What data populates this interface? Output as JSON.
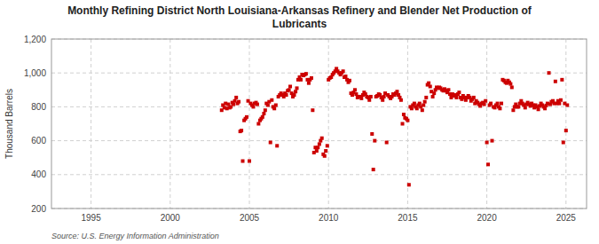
{
  "chart_data": {
    "type": "scatter",
    "title": "Monthly Refining District North Louisiana-Arkansas Refinery and Blender Net Production of\nLubricants",
    "ylabel": "Thousand Barrels",
    "source": "Source: U.S. Energy Information Administration",
    "color": "#cc0000",
    "marker": "square",
    "grid": true,
    "xlim": [
      1992.5,
      2026.3
    ],
    "xticks": [
      1995,
      2000,
      2005,
      2010,
      2015,
      2020,
      2025
    ],
    "ylim": [
      200,
      1200
    ],
    "yticks": [
      200,
      400,
      600,
      800,
      {
        "value": 1000,
        "label": "1,000"
      },
      {
        "value": 1200,
        "label": "1,200"
      }
    ],
    "x": [
      2003.25,
      2003.33,
      2003.42,
      2003.5,
      2003.58,
      2003.67,
      2003.75,
      2003.83,
      2003.92,
      2004.0,
      2004.08,
      2004.17,
      2004.25,
      2004.33,
      2004.42,
      2004.5,
      2004.58,
      2004.67,
      2004.75,
      2004.83,
      2004.92,
      2005.0,
      2005.08,
      2005.17,
      2005.25,
      2005.33,
      2005.42,
      2005.5,
      2005.58,
      2005.67,
      2005.75,
      2005.83,
      2005.92,
      2006.0,
      2006.08,
      2006.17,
      2006.25,
      2006.33,
      2006.42,
      2006.5,
      2006.58,
      2006.67,
      2006.75,
      2006.83,
      2006.92,
      2007.0,
      2007.08,
      2007.17,
      2007.25,
      2007.33,
      2007.42,
      2007.5,
      2007.58,
      2007.67,
      2007.75,
      2007.83,
      2007.92,
      2008.0,
      2008.08,
      2008.17,
      2008.25,
      2008.33,
      2008.42,
      2008.5,
      2008.58,
      2008.67,
      2008.75,
      2008.83,
      2008.92,
      2009.0,
      2009.08,
      2009.17,
      2009.25,
      2009.33,
      2009.42,
      2009.5,
      2009.58,
      2009.67,
      2009.75,
      2009.83,
      2009.92,
      2010.0,
      2010.08,
      2010.17,
      2010.25,
      2010.33,
      2010.42,
      2010.5,
      2010.58,
      2010.67,
      2010.75,
      2010.83,
      2010.92,
      2011.0,
      2011.08,
      2011.17,
      2011.25,
      2011.33,
      2011.42,
      2011.5,
      2011.58,
      2011.67,
      2011.75,
      2011.83,
      2011.92,
      2012.0,
      2012.08,
      2012.17,
      2012.25,
      2012.33,
      2012.42,
      2012.5,
      2012.58,
      2012.67,
      2012.75,
      2012.83,
      2012.92,
      2013.0,
      2013.08,
      2013.17,
      2013.25,
      2013.33,
      2013.42,
      2013.5,
      2013.58,
      2013.67,
      2013.75,
      2013.83,
      2013.92,
      2014.0,
      2014.08,
      2014.17,
      2014.25,
      2014.33,
      2014.42,
      2014.5,
      2014.58,
      2014.67,
      2014.75,
      2014.83,
      2014.92,
      2015.0,
      2015.08,
      2015.17,
      2015.25,
      2015.33,
      2015.42,
      2015.5,
      2015.58,
      2015.67,
      2015.75,
      2015.83,
      2015.92,
      2016.0,
      2016.08,
      2016.17,
      2016.25,
      2016.33,
      2016.42,
      2016.5,
      2016.58,
      2016.67,
      2016.75,
      2016.83,
      2016.92,
      2017.0,
      2017.08,
      2017.17,
      2017.25,
      2017.33,
      2017.42,
      2017.5,
      2017.58,
      2017.67,
      2017.75,
      2017.83,
      2017.92,
      2018.0,
      2018.08,
      2018.17,
      2018.25,
      2018.33,
      2018.42,
      2018.5,
      2018.58,
      2018.67,
      2018.75,
      2018.83,
      2018.92,
      2019.0,
      2019.08,
      2019.17,
      2019.25,
      2019.33,
      2019.42,
      2019.5,
      2019.58,
      2019.67,
      2019.75,
      2019.83,
      2019.92,
      2020.0,
      2020.08,
      2020.17,
      2020.25,
      2020.33,
      2020.42,
      2020.5,
      2020.58,
      2020.67,
      2020.75,
      2020.83,
      2020.92,
      2021.0,
      2021.08,
      2021.17,
      2021.25,
      2021.33,
      2021.42,
      2021.5,
      2021.58,
      2021.67,
      2021.75,
      2021.83,
      2021.92,
      2022.0,
      2022.08,
      2022.17,
      2022.25,
      2022.33,
      2022.42,
      2022.5,
      2022.58,
      2022.67,
      2022.75,
      2022.83,
      2022.92,
      2023.0,
      2023.08,
      2023.17,
      2023.25,
      2023.33,
      2023.42,
      2023.5,
      2023.58,
      2023.67,
      2023.75,
      2023.83,
      2023.92,
      2024.0,
      2024.08,
      2024.17,
      2024.25,
      2024.33,
      2024.42,
      2024.5,
      2024.58,
      2024.67,
      2024.75,
      2024.83,
      2024.92,
      2025.0,
      2025.08
    ],
    "values": [
      780,
      810,
      795,
      820,
      790,
      815,
      795,
      800,
      825,
      815,
      835,
      855,
      820,
      830,
      655,
      660,
      480,
      720,
      730,
      740,
      835,
      480,
      820,
      810,
      800,
      820,
      825,
      815,
      700,
      720,
      730,
      740,
      760,
      780,
      820,
      810,
      830,
      590,
      840,
      800,
      790,
      810,
      570,
      860,
      870,
      880,
      870,
      860,
      880,
      870,
      895,
      900,
      920,
      880,
      860,
      870,
      890,
      910,
      960,
      975,
      960,
      990,
      985,
      990,
      995,
      960,
      940,
      960,
      970,
      780,
      530,
      560,
      540,
      560,
      580,
      600,
      615,
      520,
      510,
      540,
      570,
      960,
      970,
      975,
      990,
      1000,
      1010,
      1025,
      1010,
      1000,
      990,
      1000,
      1010,
      975,
      980,
      960,
      945,
      955,
      880,
      870,
      885,
      900,
      875,
      855,
      860,
      860,
      850,
      870,
      885,
      875,
      860,
      855,
      840,
      860,
      640,
      430,
      600,
      860,
      865,
      875,
      870,
      855,
      840,
      860,
      880,
      590,
      870,
      860,
      850,
      860,
      875,
      870,
      880,
      890,
      870,
      855,
      840,
      700,
      755,
      735,
      730,
      720,
      340,
      800,
      790,
      810,
      820,
      800,
      790,
      810,
      820,
      800,
      780,
      810,
      830,
      855,
      930,
      940,
      920,
      890,
      860,
      880,
      900,
      915,
      910,
      915,
      910,
      900,
      895,
      905,
      895,
      885,
      900,
      875,
      855,
      875,
      865,
      870,
      855,
      875,
      885,
      855,
      845,
      865,
      855,
      840,
      855,
      865,
      855,
      835,
      845,
      855,
      820,
      835,
      825,
      815,
      805,
      820,
      825,
      815,
      835,
      590,
      460,
      810,
      820,
      600,
      800,
      795,
      810,
      820,
      800,
      790,
      820,
      960,
      955,
      945,
      940,
      955,
      945,
      935,
      915,
      780,
      800,
      815,
      800,
      800,
      820,
      835,
      820,
      810,
      795,
      815,
      825,
      815,
      805,
      820,
      810,
      795,
      810,
      800,
      785,
      805,
      820,
      810,
      800,
      790,
      808,
      820,
      1000,
      815,
      830,
      835,
      820,
      950,
      820,
      835,
      820,
      840,
      960,
      590,
      820,
      660,
      810
    ]
  }
}
